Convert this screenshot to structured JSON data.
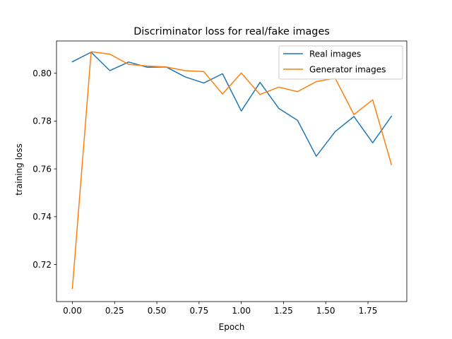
{
  "chart_data": {
    "type": "line",
    "title": "Discriminator loss for real/fake images",
    "xlabel": "Epoch",
    "ylabel": "training loss",
    "xlim": [
      -0.094,
      1.98
    ],
    "ylim": [
      0.7045,
      0.8135
    ],
    "xticks": [
      0.0,
      0.25,
      0.5,
      0.75,
      1.0,
      1.25,
      1.5,
      1.75
    ],
    "xtick_labels": [
      "0.00",
      "0.25",
      "0.50",
      "0.75",
      "1.00",
      "1.25",
      "1.50",
      "1.75"
    ],
    "yticks": [
      0.72,
      0.74,
      0.76,
      0.78,
      0.8
    ],
    "ytick_labels": [
      "0.72",
      "0.74",
      "0.76",
      "0.78",
      "0.80"
    ],
    "grid": false,
    "legend": "top-right",
    "x": [
      0.0,
      0.111,
      0.222,
      0.333,
      0.444,
      0.556,
      0.667,
      0.778,
      0.889,
      1.0,
      1.111,
      1.222,
      1.333,
      1.444,
      1.556,
      1.667,
      1.778,
      1.889
    ],
    "series": [
      {
        "name": "Real images",
        "color": "#1f77b4",
        "values": [
          0.8048,
          0.8088,
          0.8011,
          0.8047,
          0.8025,
          0.8026,
          0.7985,
          0.7959,
          0.7998,
          0.7842,
          0.7962,
          0.7853,
          0.7803,
          0.7653,
          0.7756,
          0.7819,
          0.7709,
          0.782
        ]
      },
      {
        "name": "Generator images",
        "color": "#ff7f0e",
        "values": [
          0.71,
          0.809,
          0.808,
          0.8037,
          0.803,
          0.8026,
          0.8011,
          0.8007,
          0.7913,
          0.8001,
          0.7911,
          0.7942,
          0.7923,
          0.7965,
          0.7979,
          0.7827,
          0.7889,
          0.7618
        ]
      }
    ]
  }
}
